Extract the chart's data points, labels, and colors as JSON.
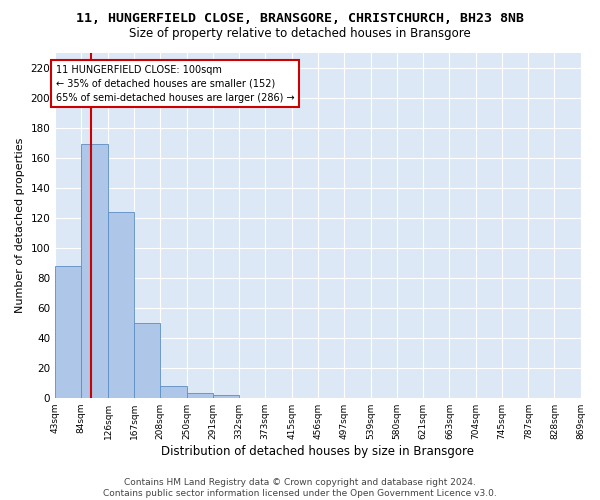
{
  "title": "11, HUNGERFIELD CLOSE, BRANSGORE, CHRISTCHURCH, BH23 8NB",
  "subtitle": "Size of property relative to detached houses in Bransgore",
  "xlabel": "Distribution of detached houses by size in Bransgore",
  "ylabel": "Number of detached properties",
  "bin_edges": [
    43,
    84,
    126,
    167,
    208,
    250,
    291,
    332,
    373,
    415,
    456,
    497,
    539,
    580,
    621,
    663,
    704,
    745,
    787,
    828,
    869
  ],
  "bin_labels": [
    "43sqm",
    "84sqm",
    "126sqm",
    "167sqm",
    "208sqm",
    "250sqm",
    "291sqm",
    "332sqm",
    "373sqm",
    "415sqm",
    "456sqm",
    "497sqm",
    "539sqm",
    "580sqm",
    "621sqm",
    "663sqm",
    "704sqm",
    "745sqm",
    "787sqm",
    "828sqm",
    "869sqm"
  ],
  "counts": [
    88,
    169,
    124,
    50,
    8,
    3,
    2,
    0,
    0,
    0,
    0,
    0,
    0,
    0,
    0,
    0,
    0,
    0,
    0,
    0
  ],
  "bar_color": "#aec6e8",
  "bar_edge_color": "#5b8ec4",
  "vline_x": 100,
  "vline_color": "#cc0000",
  "annotation_text": "11 HUNGERFIELD CLOSE: 100sqm\n← 35% of detached houses are smaller (152)\n65% of semi-detached houses are larger (286) →",
  "annotation_box_color": "#ffffff",
  "annotation_border_color": "#cc0000",
  "ylim": [
    0,
    230
  ],
  "yticks": [
    0,
    20,
    40,
    60,
    80,
    100,
    120,
    140,
    160,
    180,
    200,
    220
  ],
  "background_color": "#dce8f5",
  "footer_text": "Contains HM Land Registry data © Crown copyright and database right 2024.\nContains public sector information licensed under the Open Government Licence v3.0.",
  "title_fontsize": 9.5,
  "subtitle_fontsize": 8.5,
  "xlabel_fontsize": 8.5,
  "ylabel_fontsize": 8,
  "footer_fontsize": 6.5
}
